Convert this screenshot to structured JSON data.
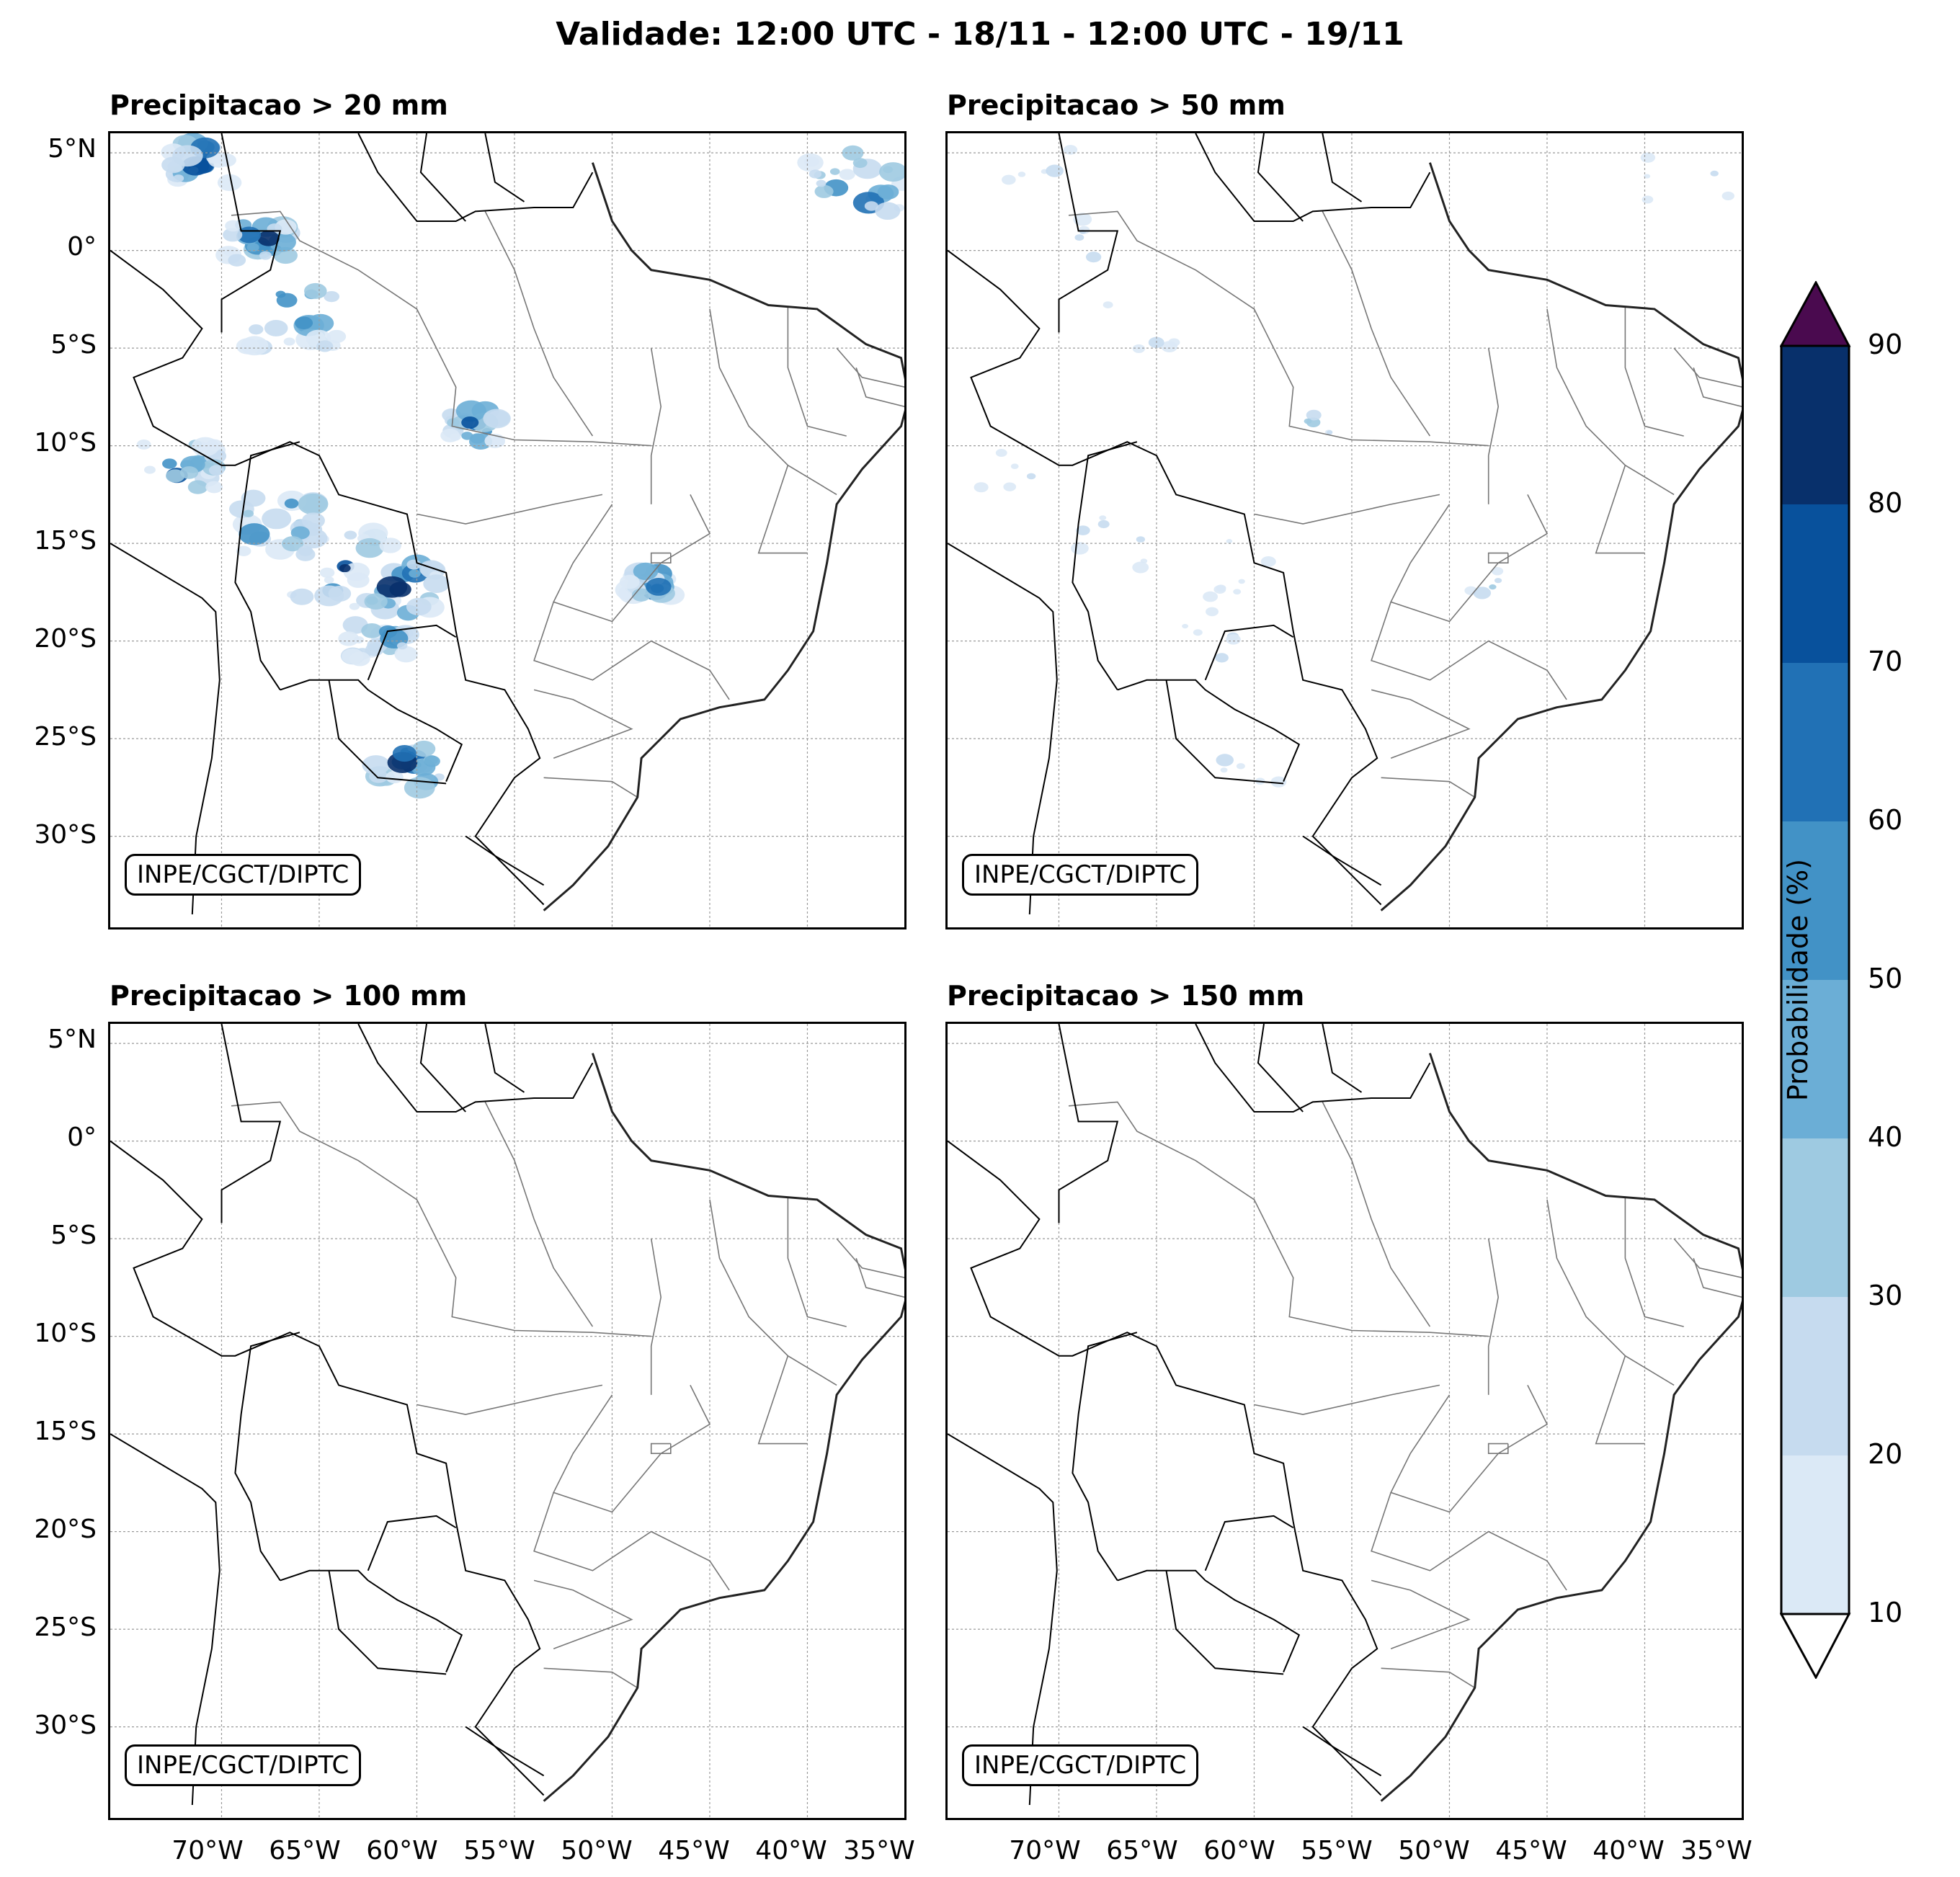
{
  "title": "Validade: 12:00 UTC - 18/11 - 12:00 UTC - 19/11",
  "panels": [
    {
      "title": "Precipitacao > 20 mm",
      "credit": "INPE/CGCT/DIPTC",
      "intensity": "high"
    },
    {
      "title": "Precipitacao > 50 mm",
      "credit": "INPE/CGCT/DIPTC",
      "intensity": "low"
    },
    {
      "title": "Precipitacao > 100 mm",
      "credit": "INPE/CGCT/DIPTC",
      "intensity": "none"
    },
    {
      "title": "Precipitacao > 150 mm",
      "credit": "INPE/CGCT/DIPTC",
      "intensity": "none"
    }
  ],
  "lat_labels": [
    "5°N",
    "0°",
    "5°S",
    "10°S",
    "15°S",
    "20°S",
    "25°S",
    "30°S"
  ],
  "lon_labels": [
    "70°W",
    "65°W",
    "60°W",
    "55°W",
    "50°W",
    "45°W",
    "40°W",
    "35°W"
  ],
  "colorbar": {
    "label": "Probabilidade (%)",
    "ticks": [
      "10",
      "20",
      "30",
      "40",
      "50",
      "60",
      "70",
      "80",
      "90"
    ],
    "colors": [
      "#dbe9f6",
      "#c6dbef",
      "#9ecae1",
      "#6baed6",
      "#4292c6",
      "#2171b5",
      "#08519c",
      "#08306b"
    ],
    "extend_over_color": "#4a0a4f",
    "extend_under_color": "#ffffff"
  }
}
